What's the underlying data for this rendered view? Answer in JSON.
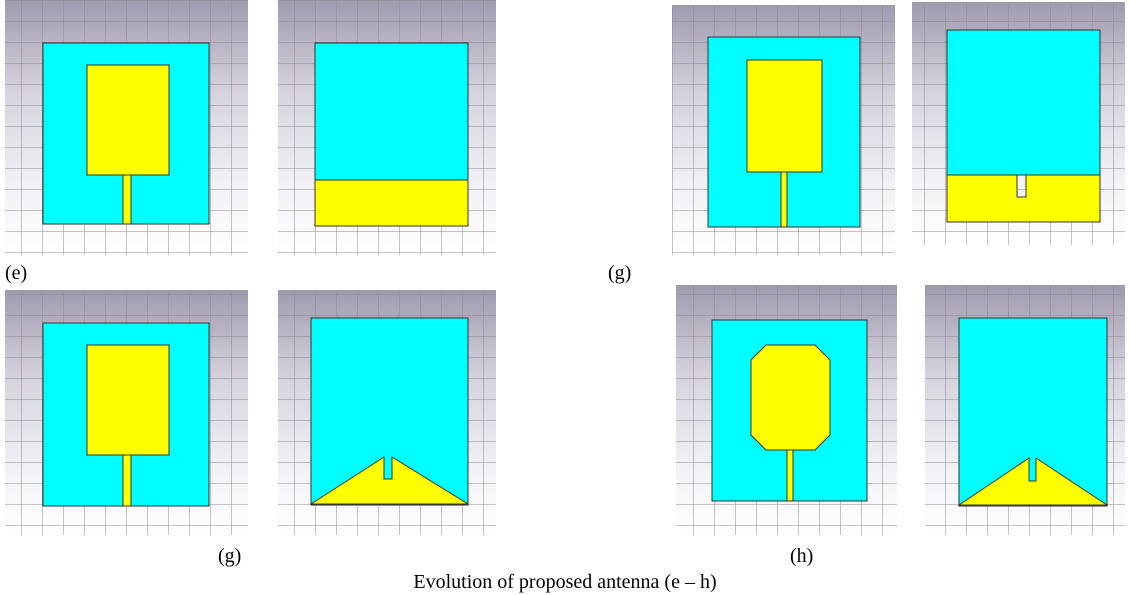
{
  "labels": [
    "(e)",
    "(g)",
    "(g)",
    "(h)"
  ],
  "caption": "Evolution of proposed antenna (e – h)"
}
